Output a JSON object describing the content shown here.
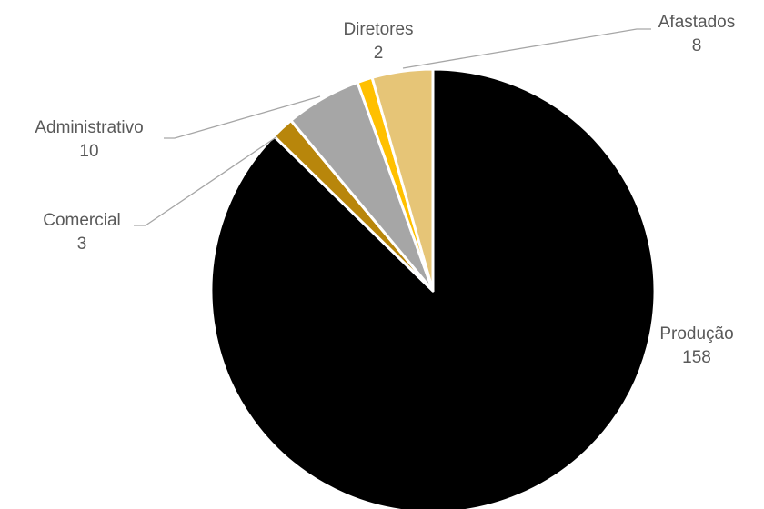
{
  "chart_data": {
    "type": "pie",
    "slices": [
      {
        "label": "Produção",
        "value": 158,
        "color": "#000000"
      },
      {
        "label": "Comercial",
        "value": 3,
        "color": "#b8860b"
      },
      {
        "label": "Administrativo",
        "value": 10,
        "color": "#a6a6a6"
      },
      {
        "label": "Diretores",
        "value": 2,
        "color": "#ffc000"
      },
      {
        "label": "Afastados",
        "value": 8,
        "color": "#e6c577"
      }
    ],
    "start_angle": "12 o'clock",
    "direction": "clockwise",
    "data_labels": "category name and value, outside with leader lines",
    "legend": "none"
  }
}
